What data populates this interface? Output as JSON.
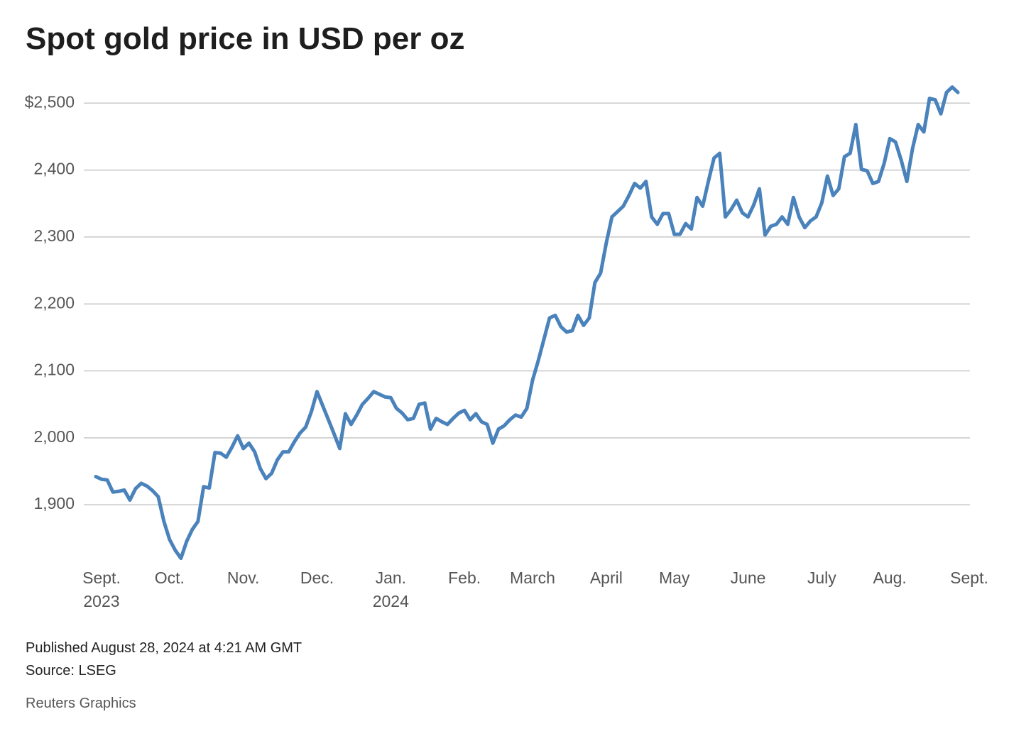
{
  "chart_data": {
    "type": "line",
    "title": "Spot gold price in USD per oz",
    "categories": [
      null,
      "Sept.\n2023",
      null,
      null,
      null,
      null,
      null,
      null,
      null,
      null,
      null,
      null,
      null,
      "Oct.",
      null,
      null,
      null,
      null,
      null,
      null,
      null,
      null,
      null,
      null,
      null,
      null,
      "Nov.",
      null,
      null,
      null,
      null,
      null,
      null,
      null,
      null,
      null,
      null,
      null,
      null,
      "Dec.",
      null,
      null,
      null,
      null,
      null,
      null,
      null,
      null,
      null,
      null,
      null,
      null,
      "Jan.\n2024",
      null,
      null,
      null,
      null,
      null,
      null,
      null,
      null,
      null,
      null,
      null,
      null,
      "Feb.",
      null,
      null,
      null,
      null,
      null,
      null,
      null,
      null,
      null,
      null,
      null,
      "March",
      null,
      null,
      null,
      null,
      null,
      null,
      null,
      null,
      null,
      null,
      null,
      null,
      "April",
      null,
      null,
      null,
      null,
      null,
      null,
      null,
      null,
      null,
      null,
      null,
      "May",
      null,
      null,
      null,
      null,
      null,
      null,
      null,
      null,
      null,
      null,
      null,
      null,
      "June",
      null,
      null,
      null,
      null,
      null,
      null,
      null,
      null,
      null,
      null,
      null,
      null,
      "July",
      null,
      null,
      null,
      null,
      null,
      null,
      null,
      null,
      null,
      null,
      null,
      "Aug.",
      null,
      null,
      null,
      null,
      null,
      null,
      null,
      null,
      null,
      null,
      null,
      null,
      null,
      "Sept."
    ],
    "series": [
      {
        "name": "Spot gold",
        "color": "#4a82bb",
        "values": [
          1942,
          1938,
          1937,
          1919,
          1920,
          1922,
          1907,
          1924,
          1932,
          1928,
          1921,
          1912,
          1875,
          1848,
          1832,
          1820,
          1845,
          1863,
          1875,
          1927,
          1925,
          1978,
          1977,
          1971,
          1986,
          2003,
          1984,
          1992,
          1979,
          1954,
          1939,
          1947,
          1967,
          1979,
          1979,
          1994,
          2007,
          2016,
          2039,
          2069,
          2048,
          2027,
          2006,
          1984,
          2036,
          2020,
          2034,
          2050,
          2059,
          2069,
          2065,
          2061,
          2060,
          2044,
          2037,
          2027,
          2029,
          2050,
          2052,
          2013,
          2029,
          2024,
          2020,
          2029,
          2037,
          2041,
          2027,
          2036,
          2024,
          2020,
          1992,
          2013,
          2018,
          2027,
          2034,
          2031,
          2044,
          2086,
          2115,
          2147,
          2179,
          2183,
          2166,
          2158,
          2160,
          2183,
          2168,
          2179,
          2232,
          2246,
          2291,
          2330,
          2338,
          2346,
          2362,
          2380,
          2373,
          2383,
          2330,
          2319,
          2335,
          2335,
          2304,
          2304,
          2320,
          2312,
          2359,
          2346,
          2383,
          2418,
          2425,
          2330,
          2341,
          2355,
          2336,
          2330,
          2348,
          2372,
          2303,
          2316,
          2319,
          2330,
          2319,
          2359,
          2330,
          2314,
          2324,
          2330,
          2351,
          2391,
          2362,
          2372,
          2420,
          2425,
          2468,
          2401,
          2399,
          2380,
          2383,
          2410,
          2447,
          2442,
          2415,
          2383,
          2432,
          2468,
          2457,
          2507,
          2505,
          2484,
          2516,
          2524,
          2516,
          null,
          null
        ]
      }
    ],
    "ylim": [
      1810,
      2530
    ],
    "yticks": [
      {
        "value": 1900,
        "label": "1,900"
      },
      {
        "value": 2000,
        "label": "2,000"
      },
      {
        "value": 2100,
        "label": "2,100"
      },
      {
        "value": 2200,
        "label": "2,200"
      },
      {
        "value": 2300,
        "label": "2,300"
      },
      {
        "value": 2400,
        "label": "2,400"
      },
      {
        "value": 2500,
        "label": "$2,500"
      }
    ],
    "grid": true,
    "published": "Published August 28, 2024 at 4:21 AM GMT",
    "source": "Source: LSEG",
    "credit": "Reuters Graphics"
  }
}
